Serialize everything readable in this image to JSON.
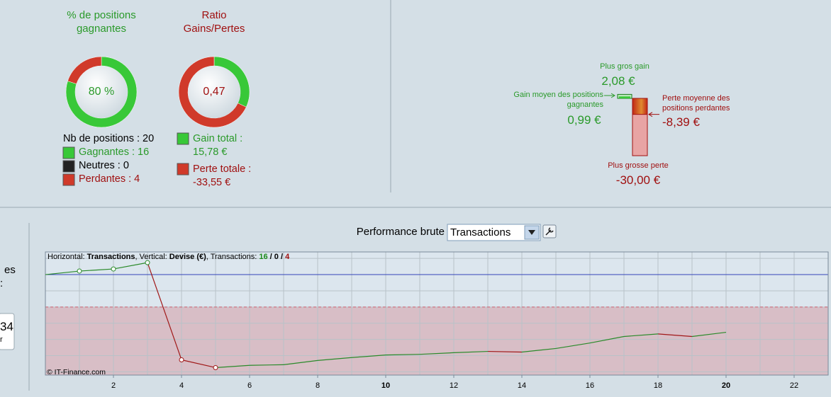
{
  "donuts": [
    {
      "title": "% de positions gagnantes",
      "center_label": "80 %",
      "title_color": "#2a9a2a",
      "center_color": "#2a9a2a",
      "values": [
        16,
        0,
        4
      ],
      "colors": [
        "#38c838",
        "#222222",
        "#d03a2a"
      ]
    },
    {
      "title": "Ratio Gains/Pertes",
      "center_label": "0,47",
      "title_color": "#a01010",
      "center_color": "#a01010",
      "values": [
        15.78,
        33.55
      ],
      "colors": [
        "#38c838",
        "#d03a2a"
      ]
    }
  ],
  "positions": {
    "label": "Nb de positions : 20",
    "items": [
      {
        "label": "Gagnantes : 16",
        "color": "#2a9a2a",
        "swatch": "#38c838"
      },
      {
        "label": "Neutres : 0",
        "color": "#000000",
        "swatch": "#222222"
      },
      {
        "label": "Perdantes : 4",
        "color": "#a01010",
        "swatch": "#d03a2a"
      }
    ]
  },
  "totals": [
    {
      "label": "Gain total :",
      "value_label": "15,78 €",
      "color": "#2a9a2a",
      "swatch": "#38c838"
    },
    {
      "label": "Perte totale :",
      "value_label": "-33,55 €",
      "color": "#a01010",
      "swatch": "#d03a2a"
    }
  ],
  "extremes": {
    "type": "bar",
    "max_gain": {
      "label": "Plus gros gain",
      "value": 2.08,
      "value_label": "2,08 €"
    },
    "avg_gain": {
      "label": "Gain moyen des positions gagnantes",
      "value": 0.99,
      "value_label": "0,99 €"
    },
    "avg_loss": {
      "label": "Perte moyenne des positions perdantes",
      "value": -8.39,
      "value_label": "-8,39 €"
    },
    "max_loss": {
      "label": "Plus grosse perte",
      "value": -30,
      "value_label": "-30,00 €"
    }
  },
  "side": {
    "texts": [
      "es",
      ":"
    ],
    "box": [
      "34",
      "r"
    ]
  },
  "performance": {
    "label": "Performance brute",
    "select": "Transactions"
  },
  "chart_data": {
    "type": "line",
    "info": [
      {
        "text": "Horizontal: "
      },
      {
        "text": "Transactions",
        "bold": true
      },
      {
        "text": ", Vertical: "
      },
      {
        "text": "Devise (€)",
        "bold": true
      },
      {
        "text": ", Transactions: "
      },
      {
        "text": "16",
        "bold": true,
        "color": "#1a8a1a"
      },
      {
        "text": " / ",
        "bold": true
      },
      {
        "text": "0",
        "bold": true
      },
      {
        "text": " / ",
        "bold": true
      },
      {
        "text": "4",
        "bold": true,
        "color": "#a01010"
      }
    ],
    "copyright": "© IT-Finance.com",
    "x": [
      0,
      1,
      2,
      3,
      4,
      5,
      6,
      7,
      8,
      9,
      10,
      11,
      12,
      13,
      14,
      15,
      16,
      17,
      18,
      19,
      20
    ],
    "series": [
      {
        "values": [
          0,
          1.09,
          1.74,
          3.7,
          -26.3,
          -28.7,
          -28.0,
          -27.8,
          -26.5,
          -25.6,
          -24.8,
          -24.6,
          -24.1,
          -23.7,
          -23.9,
          -22.8,
          -21.1,
          -19.1,
          -18.3,
          -19.1,
          -17.8
        ],
        "up_color": "#2a8a2a",
        "down_color": "#a01818",
        "marker_points": [
          1,
          2,
          3,
          4,
          5
        ]
      }
    ],
    "xlim": [
      0,
      23
    ],
    "ylim": [
      -31,
      7
    ],
    "xticks": [
      2,
      4,
      6,
      8,
      10,
      12,
      14,
      16,
      18,
      20,
      22
    ],
    "bold_xticks": [
      10,
      20
    ],
    "xgrid": [
      1,
      2,
      3,
      4,
      5,
      6,
      7,
      8,
      9,
      10,
      11,
      12,
      13,
      14,
      15,
      16,
      17,
      18,
      19,
      20,
      21,
      22
    ],
    "ygrid": [
      5,
      0,
      -5,
      -10,
      -15,
      -20,
      -25,
      -30
    ],
    "reference_lines": [
      {
        "value": 0,
        "color": "#3344bb"
      },
      {
        "value": -10,
        "color": "#d06070",
        "dashed": true,
        "shade_below": "#d8bec6"
      }
    ],
    "background": "#dce6ee",
    "grid": true
  }
}
